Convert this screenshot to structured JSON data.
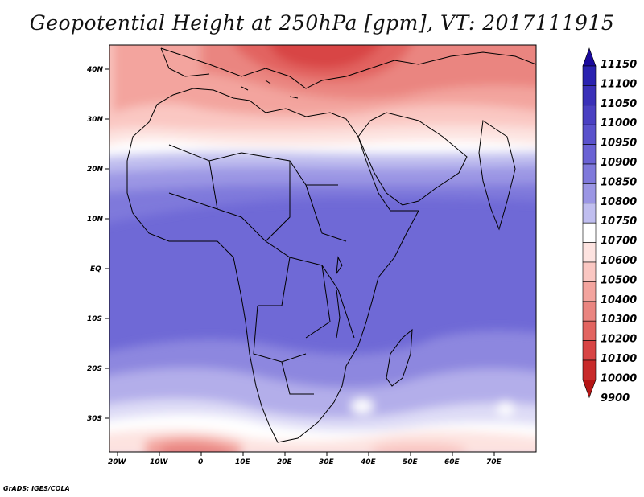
{
  "title": "Geopotential Height at 250hPa [gpm], VT: 2017111915",
  "credit": "GrADS: IGES/COLA",
  "map": {
    "lat_labels": [
      "40N",
      "30N",
      "20N",
      "10N",
      "EQ",
      "10S",
      "20S",
      "30S"
    ],
    "lon_labels": [
      "20W",
      "10W",
      "0",
      "10E",
      "20E",
      "30E",
      "40E",
      "50E",
      "60E",
      "70E"
    ],
    "lat_range": [
      -36,
      45
    ],
    "lon_range": [
      -22,
      80
    ]
  },
  "colorbar": {
    "levels": [
      "11150",
      "11100",
      "11050",
      "11000",
      "10950",
      "10900",
      "10850",
      "10800",
      "10750",
      "10700",
      "10600",
      "10500",
      "10400",
      "10300",
      "10200",
      "10100",
      "10000",
      "9900"
    ],
    "colors": [
      "#1a0a9c",
      "#2a22b0",
      "#3a30b8",
      "#4a40c2",
      "#5a52cc",
      "#6a62d4",
      "#7f79db",
      "#9b96e4",
      "#c0beef",
      "#ffffff",
      "#fde3e0",
      "#fac7c2",
      "#f3a49e",
      "#ea8580",
      "#e26460",
      "#d84444",
      "#c82a2a",
      "#b51515"
    ]
  }
}
